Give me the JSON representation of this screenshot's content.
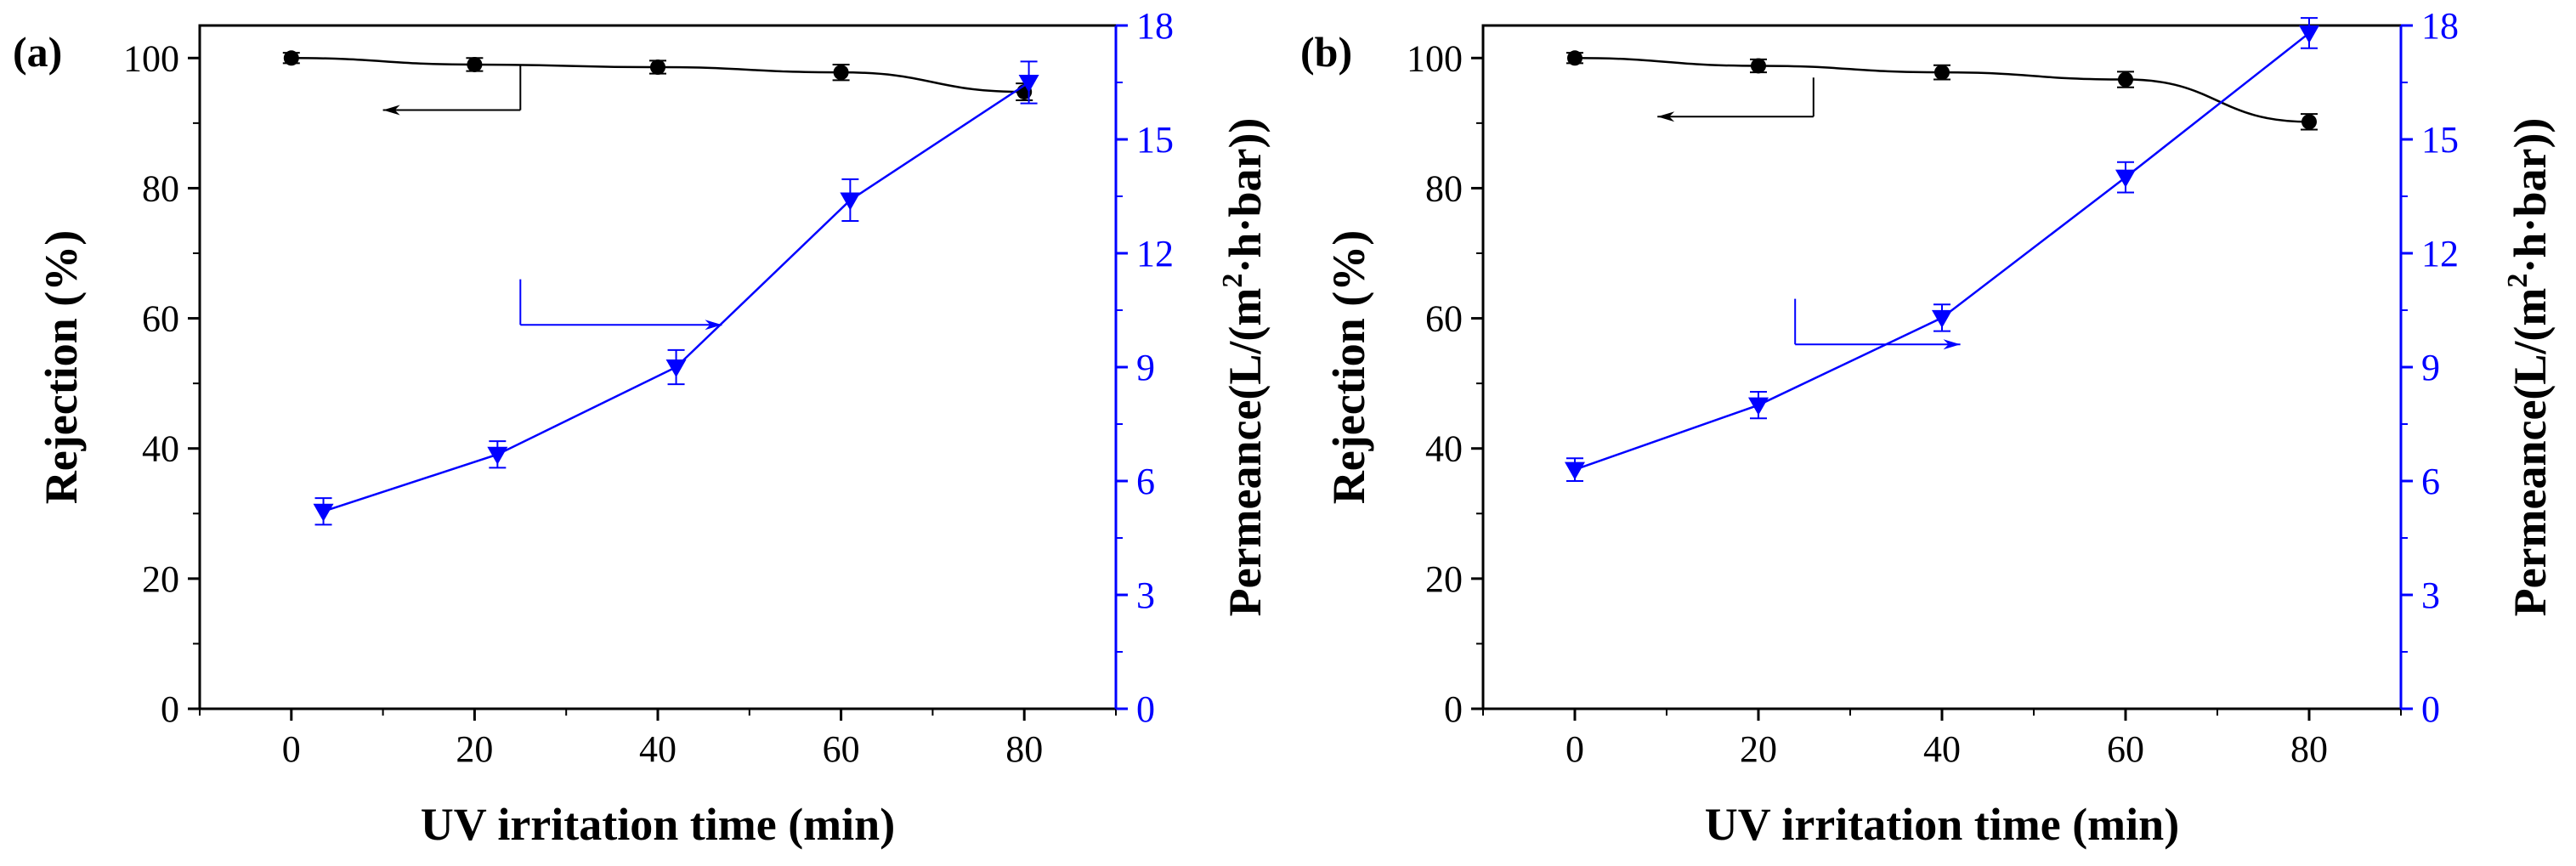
{
  "chart_data": [
    {
      "panel_label": "(a)",
      "type": "line",
      "xlabel": "UV irritation time (min)",
      "ylabel_left": "Rejection (%)",
      "ylabel_right_prefix": "Permeance(L/(m",
      "ylabel_right_sup": "2",
      "ylabel_right_suffix": "·h·bar))",
      "xlim": [
        -10,
        90
      ],
      "ylim_left": [
        0,
        105
      ],
      "ylim_right": [
        0,
        18
      ],
      "x_ticks": [
        0,
        20,
        40,
        60,
        80
      ],
      "y_left_ticks": [
        0,
        20,
        40,
        60,
        80,
        100
      ],
      "y_right_ticks": [
        0,
        3,
        6,
        9,
        12,
        15,
        18
      ],
      "series": [
        {
          "name": "Rejection",
          "axis": "left",
          "color": "#000000",
          "marker": "circle",
          "x": [
            0,
            20,
            40,
            60,
            80
          ],
          "y": [
            100.0,
            99.0,
            98.6,
            97.8,
            94.8
          ],
          "err": [
            0.8,
            1.0,
            1.0,
            1.2,
            1.3
          ]
        },
        {
          "name": "Permeance",
          "axis": "right",
          "color": "#0000ff",
          "marker": "triangle-down",
          "x": [
            3.5,
            22.5,
            42,
            61,
            80.5
          ],
          "y": [
            5.2,
            6.7,
            9.0,
            13.4,
            16.5
          ],
          "err": [
            0.35,
            0.35,
            0.45,
            0.55,
            0.55
          ]
        }
      ],
      "annotations": [
        {
          "target": "left",
          "color": "#000000",
          "corner": [
            25,
            92
          ],
          "top_y": 99,
          "tip_x": 10
        },
        {
          "target": "right",
          "color": "#0000ff",
          "corner": [
            25,
            59
          ],
          "top_y": 66,
          "tip_x": 47
        }
      ]
    },
    {
      "panel_label": "(b)",
      "type": "line",
      "xlabel": "UV irritation time (min)",
      "ylabel_left": "Rejection (%)",
      "ylabel_right_prefix": "Permeance(L/(m",
      "ylabel_right_sup": "2",
      "ylabel_right_suffix": "·h·bar))",
      "xlim": [
        -10,
        90
      ],
      "ylim_left": [
        0,
        105
      ],
      "ylim_right": [
        0,
        18
      ],
      "x_ticks": [
        0,
        20,
        40,
        60,
        80
      ],
      "y_left_ticks": [
        0,
        20,
        40,
        60,
        80,
        100
      ],
      "y_right_ticks": [
        0,
        3,
        6,
        9,
        12,
        15,
        18
      ],
      "series": [
        {
          "name": "Rejection",
          "axis": "left",
          "color": "#000000",
          "marker": "circle",
          "x": [
            0,
            20,
            40,
            60,
            80
          ],
          "y": [
            100.0,
            98.8,
            97.8,
            96.7,
            90.2
          ],
          "err": [
            0.8,
            1.0,
            1.1,
            1.2,
            1.2
          ]
        },
        {
          "name": "Permeance",
          "axis": "right",
          "color": "#0000ff",
          "marker": "triangle-down",
          "x": [
            0,
            20,
            40,
            60,
            80
          ],
          "y": [
            6.3,
            8.0,
            10.3,
            14.0,
            17.8
          ],
          "err": [
            0.3,
            0.35,
            0.35,
            0.4,
            0.4
          ]
        }
      ],
      "annotations": [
        {
          "target": "left",
          "color": "#000000",
          "corner": [
            26,
            91
          ],
          "top_y": 97,
          "tip_x": 9
        },
        {
          "target": "right",
          "color": "#0000ff",
          "corner": [
            24,
            56
          ],
          "top_y": 63,
          "tip_x": 42
        }
      ]
    }
  ]
}
